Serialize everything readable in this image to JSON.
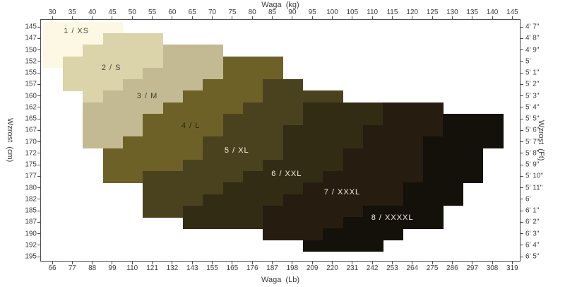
{
  "axes": {
    "top": {
      "title": "Waga  (kg)",
      "ticks": [
        "30",
        "35",
        "40",
        "45",
        "50",
        "55",
        "60",
        "65",
        "70",
        "75",
        "80",
        "85",
        "90",
        "95",
        "100",
        "105",
        "110",
        "115",
        "120",
        "125",
        "130",
        "135",
        "140",
        "145"
      ]
    },
    "bottom": {
      "title": "Waga  (Lb)",
      "ticks": [
        "66",
        "77",
        "88",
        "99",
        "110",
        "121",
        "132",
        "143",
        "155",
        "165",
        "176",
        "187",
        "198",
        "209",
        "220",
        "231",
        "242",
        "253",
        "264",
        "275",
        "286",
        "297",
        "308",
        "319"
      ]
    },
    "left": {
      "title": "Wzrost  (cm)",
      "ticks": [
        "145",
        "147",
        "150",
        "152",
        "155",
        "157",
        "160",
        "162",
        "165",
        "167",
        "170",
        "172",
        "175",
        "177",
        "180",
        "182",
        "185",
        "187",
        "190",
        "192",
        "195"
      ]
    },
    "right": {
      "title": "Wzrost  (Ft)",
      "ticks": [
        "4' 7\"",
        "4' 8\"",
        "4' 9\"",
        "5'",
        "5' 1\"",
        "5' 2\"",
        "5' 3\"",
        "5' 4\"",
        "5' 5\"",
        "5' 6\"",
        "5' 7\"",
        "5' 8\"",
        "5' 9\"",
        "5' 10\"",
        "5' 11\"",
        "6'",
        "6' 1\"",
        "6' 2\"",
        "6' 3\"",
        "6' 4\"",
        "6' 5\""
      ]
    }
  },
  "chart_data": {
    "type": "heatmap",
    "title": "",
    "xlabel_top": "Waga (kg)",
    "xlabel_bottom": "Waga (Lb)",
    "ylabel_left": "Wzrost (cm)",
    "ylabel_right": "Wzrost (Ft)",
    "grid": {
      "cols": 24,
      "rows": 21,
      "kg_col_edges_start": 27.5,
      "kg_col_step": 5,
      "cm_row_edges_start": 143.75,
      "cm_row_step": 2.5,
      "kg_axis_range": [
        27,
        147.1
      ],
      "cm_axis_range": [
        143.3,
        196.1
      ],
      "gridlines": false
    },
    "sizes": [
      {
        "num": "1",
        "code": "XS",
        "label": "1 / XS",
        "color": "#fcf8e4",
        "text_color": "#4a4a40",
        "label_x_pct": 7.4,
        "label_y_pct": 4.7
      },
      {
        "num": "2",
        "code": "S",
        "label": "2 / S",
        "color": "#dbd3a9",
        "text_color": "#4a4a40",
        "label_x_pct": 14.7,
        "label_y_pct": 19.8
      },
      {
        "num": "3",
        "code": "M",
        "label": "3 / M",
        "color": "#c3ba93",
        "text_color": "#3f3f2e",
        "label_x_pct": 22.2,
        "label_y_pct": 31.8
      },
      {
        "num": "4",
        "code": "L",
        "label": "4 / L",
        "color": "#6d6127",
        "text_color": "#2c2712",
        "label_x_pct": 31.3,
        "label_y_pct": 44.0
      },
      {
        "num": "5",
        "code": "XL",
        "label": "5 / XL",
        "color": "#4a421f",
        "text_color": "#f3eedd",
        "label_x_pct": 40.9,
        "label_y_pct": 54.2
      },
      {
        "num": "6",
        "code": "XXL",
        "label": "6 / XXL",
        "color": "#332c15",
        "text_color": "#f3eedd",
        "label_x_pct": 51.3,
        "label_y_pct": 63.8
      },
      {
        "num": "7",
        "code": "XXXL",
        "label": "7 / XXXL",
        "color": "#261c10",
        "text_color": "#f3eedd",
        "label_x_pct": 62.9,
        "label_y_pct": 71.7
      },
      {
        "num": "8",
        "code": "XXXXL",
        "label": "8 / XXXXL",
        "color": "#14100a",
        "text_color": "#f3eedd",
        "label_x_pct": 73.4,
        "label_y_pct": 82.2
      }
    ],
    "row_segments_note": "per height row (top=145cm), entries are [size_num, start_col, end_col_exclusive]; columns are 5 kg wide starting at 27.5 kg",
    "row_segments": [
      [
        [
          1,
          0,
          4
        ]
      ],
      [
        [
          1,
          0,
          3
        ],
        [
          2,
          3,
          6
        ]
      ],
      [
        [
          1,
          0,
          2
        ],
        [
          2,
          2,
          6
        ],
        [
          3,
          6,
          9
        ]
      ],
      [
        [
          1,
          0,
          1
        ],
        [
          2,
          1,
          6
        ],
        [
          3,
          6,
          9
        ],
        [
          4,
          9,
          12
        ]
      ],
      [
        [
          2,
          1,
          5
        ],
        [
          3,
          5,
          9
        ],
        [
          4,
          9,
          12
        ]
      ],
      [
        [
          2,
          1,
          4
        ],
        [
          3,
          4,
          8
        ],
        [
          4,
          8,
          11
        ],
        [
          5,
          11,
          13
        ]
      ],
      [
        [
          2,
          2,
          3
        ],
        [
          3,
          3,
          7
        ],
        [
          4,
          7,
          11
        ],
        [
          5,
          11,
          15
        ]
      ],
      [
        [
          3,
          2,
          6
        ],
        [
          4,
          6,
          10
        ],
        [
          5,
          10,
          13
        ],
        [
          6,
          13,
          17
        ],
        [
          7,
          17,
          20
        ]
      ],
      [
        [
          3,
          2,
          5
        ],
        [
          4,
          5,
          9
        ],
        [
          5,
          9,
          13
        ],
        [
          6,
          13,
          17
        ],
        [
          7,
          17,
          20
        ],
        [
          8,
          20,
          23
        ]
      ],
      [
        [
          3,
          2,
          5
        ],
        [
          4,
          5,
          9
        ],
        [
          5,
          9,
          12
        ],
        [
          6,
          12,
          16
        ],
        [
          7,
          16,
          20
        ],
        [
          8,
          20,
          23
        ]
      ],
      [
        [
          3,
          2,
          4
        ],
        [
          4,
          4,
          8
        ],
        [
          5,
          8,
          12
        ],
        [
          6,
          12,
          16
        ],
        [
          7,
          16,
          19
        ],
        [
          8,
          19,
          23
        ]
      ],
      [
        [
          4,
          3,
          8
        ],
        [
          5,
          8,
          12
        ],
        [
          6,
          12,
          15
        ],
        [
          7,
          15,
          19
        ],
        [
          8,
          19,
          22
        ]
      ],
      [
        [
          4,
          3,
          7
        ],
        [
          5,
          7,
          11
        ],
        [
          6,
          11,
          15
        ],
        [
          7,
          15,
          19
        ],
        [
          8,
          19,
          22
        ]
      ],
      [
        [
          4,
          3,
          5
        ],
        [
          5,
          5,
          10
        ],
        [
          6,
          10,
          14
        ],
        [
          7,
          14,
          19
        ],
        [
          8,
          19,
          22
        ]
      ],
      [
        [
          5,
          5,
          9
        ],
        [
          6,
          9,
          13
        ],
        [
          7,
          13,
          18
        ],
        [
          8,
          18,
          21
        ]
      ],
      [
        [
          5,
          5,
          8
        ],
        [
          6,
          8,
          12
        ],
        [
          7,
          12,
          18
        ],
        [
          8,
          18,
          21
        ]
      ],
      [
        [
          5,
          5,
          7
        ],
        [
          6,
          7,
          11
        ],
        [
          7,
          11,
          16
        ],
        [
          8,
          16,
          20
        ]
      ],
      [
        [
          6,
          7,
          11
        ],
        [
          7,
          11,
          15
        ],
        [
          8,
          15,
          20
        ]
      ],
      [
        [
          7,
          11,
          14
        ],
        [
          8,
          14,
          18
        ]
      ],
      [
        [
          8,
          13,
          17
        ]
      ],
      []
    ]
  }
}
